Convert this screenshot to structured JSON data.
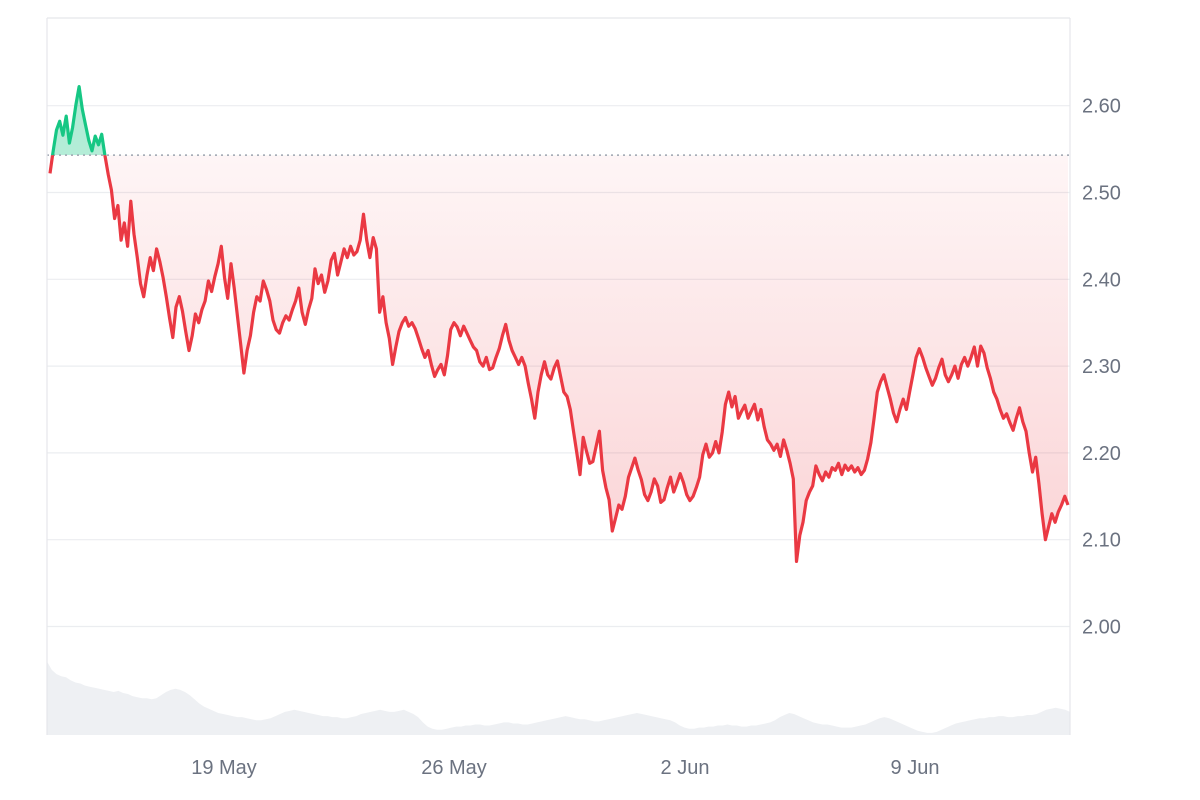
{
  "chart_data": {
    "type": "area",
    "title": "",
    "xlabel": "",
    "ylabel": "",
    "x_ticks": [
      "19 May",
      "26 May",
      "2 Jun",
      "9 Jun"
    ],
    "y_ticks": [
      "2.00",
      "2.10",
      "2.20",
      "2.30",
      "2.40",
      "2.50",
      "2.60"
    ],
    "ylim": [
      1.88,
      2.7
    ],
    "baseline": 2.543,
    "grid": true,
    "colors": {
      "up": "#16c784",
      "down": "#ea3943",
      "volume": "#eef0f3",
      "grid": "#ebedf0",
      "baseline": "#9ca3af"
    },
    "series": [
      {
        "values": [
          2.522,
          2.548,
          2.572,
          2.582,
          2.566,
          2.588,
          2.557,
          2.575,
          2.601,
          2.622,
          2.596,
          2.578,
          2.56,
          2.548,
          2.565,
          2.555,
          2.567,
          2.543,
          2.521,
          2.503,
          2.47,
          2.485,
          2.445,
          2.465,
          2.438,
          2.49,
          2.452,
          2.425,
          2.395,
          2.38,
          2.405,
          2.425,
          2.41,
          2.435,
          2.42,
          2.402,
          2.38,
          2.355,
          2.333,
          2.368,
          2.38,
          2.363,
          2.34,
          2.318,
          2.335,
          2.36,
          2.35,
          2.365,
          2.375,
          2.398,
          2.386,
          2.403,
          2.418,
          2.438,
          2.402,
          2.378,
          2.418,
          2.39,
          2.358,
          2.325,
          2.292,
          2.318,
          2.335,
          2.362,
          2.38,
          2.375,
          2.398,
          2.388,
          2.375,
          2.353,
          2.342,
          2.338,
          2.35,
          2.358,
          2.353,
          2.365,
          2.375,
          2.39,
          2.362,
          2.348,
          2.365,
          2.378,
          2.412,
          2.395,
          2.405,
          2.385,
          2.398,
          2.422,
          2.43,
          2.405,
          2.42,
          2.435,
          2.425,
          2.438,
          2.428,
          2.432,
          2.445,
          2.475,
          2.445,
          2.425,
          2.448,
          2.435,
          2.362,
          2.38,
          2.35,
          2.332,
          2.302,
          2.322,
          2.34,
          2.35,
          2.356,
          2.346,
          2.35,
          2.343,
          2.332,
          2.32,
          2.31,
          2.318,
          2.302,
          2.288,
          2.296,
          2.302,
          2.29,
          2.312,
          2.342,
          2.35,
          2.345,
          2.335,
          2.346,
          2.338,
          2.33,
          2.322,
          2.318,
          2.305,
          2.3,
          2.31,
          2.296,
          2.298,
          2.31,
          2.32,
          2.335,
          2.348,
          2.33,
          2.318,
          2.31,
          2.302,
          2.31,
          2.3,
          2.28,
          2.262,
          2.24,
          2.27,
          2.29,
          2.305,
          2.29,
          2.285,
          2.298,
          2.306,
          2.288,
          2.27,
          2.265,
          2.25,
          2.225,
          2.2,
          2.175,
          2.218,
          2.202,
          2.188,
          2.19,
          2.208,
          2.225,
          2.18,
          2.16,
          2.146,
          2.11,
          2.125,
          2.14,
          2.135,
          2.15,
          2.172,
          2.183,
          2.194,
          2.18,
          2.169,
          2.152,
          2.145,
          2.155,
          2.17,
          2.162,
          2.143,
          2.146,
          2.16,
          2.172,
          2.155,
          2.165,
          2.176,
          2.166,
          2.152,
          2.145,
          2.15,
          2.16,
          2.172,
          2.198,
          2.21,
          2.195,
          2.2,
          2.213,
          2.2,
          2.224,
          2.256,
          2.27,
          2.253,
          2.265,
          2.24,
          2.248,
          2.255,
          2.24,
          2.248,
          2.256,
          2.238,
          2.25,
          2.23,
          2.215,
          2.21,
          2.203,
          2.21,
          2.196,
          2.215,
          2.203,
          2.188,
          2.17,
          2.075,
          2.105,
          2.12,
          2.145,
          2.155,
          2.162,
          2.185,
          2.175,
          2.168,
          2.178,
          2.172,
          2.183,
          2.18,
          2.188,
          2.175,
          2.186,
          2.18,
          2.185,
          2.178,
          2.183,
          2.175,
          2.18,
          2.193,
          2.212,
          2.24,
          2.27,
          2.282,
          2.29,
          2.276,
          2.262,
          2.246,
          2.236,
          2.25,
          2.262,
          2.25,
          2.27,
          2.29,
          2.31,
          2.32,
          2.31,
          2.298,
          2.288,
          2.278,
          2.286,
          2.298,
          2.308,
          2.29,
          2.282,
          2.29,
          2.3,
          2.286,
          2.302,
          2.31,
          2.3,
          2.31,
          2.322,
          2.3,
          2.323,
          2.315,
          2.298,
          2.286,
          2.27,
          2.262,
          2.25,
          2.24,
          2.245,
          2.235,
          2.226,
          2.24,
          2.252,
          2.236,
          2.225,
          2.2,
          2.178,
          2.195,
          2.165,
          2.13,
          2.1,
          2.115,
          2.13,
          2.12,
          2.132,
          2.14,
          2.15,
          2.14
        ]
      }
    ],
    "volume_values": [
      0.7,
      0.62,
      0.58,
      0.56,
      0.55,
      0.52,
      0.5,
      0.49,
      0.47,
      0.46,
      0.45,
      0.44,
      0.43,
      0.42,
      0.41,
      0.42,
      0.4,
      0.39,
      0.37,
      0.36,
      0.35,
      0.35,
      0.34,
      0.35,
      0.38,
      0.41,
      0.43,
      0.44,
      0.43,
      0.41,
      0.38,
      0.34,
      0.3,
      0.27,
      0.25,
      0.23,
      0.21,
      0.2,
      0.19,
      0.18,
      0.17,
      0.17,
      0.16,
      0.15,
      0.14,
      0.14,
      0.15,
      0.16,
      0.18,
      0.2,
      0.22,
      0.23,
      0.24,
      0.23,
      0.22,
      0.21,
      0.2,
      0.19,
      0.18,
      0.18,
      0.17,
      0.17,
      0.16,
      0.16,
      0.17,
      0.18,
      0.2,
      0.21,
      0.22,
      0.23,
      0.24,
      0.23,
      0.22,
      0.22,
      0.23,
      0.24,
      0.22,
      0.2,
      0.17,
      0.12,
      0.08,
      0.06,
      0.05,
      0.05,
      0.06,
      0.07,
      0.08,
      0.08,
      0.09,
      0.09,
      0.1,
      0.1,
      0.09,
      0.09,
      0.1,
      0.11,
      0.12,
      0.12,
      0.11,
      0.11,
      0.1,
      0.1,
      0.11,
      0.12,
      0.13,
      0.14,
      0.15,
      0.16,
      0.17,
      0.18,
      0.17,
      0.16,
      0.15,
      0.15,
      0.14,
      0.13,
      0.13,
      0.14,
      0.15,
      0.16,
      0.17,
      0.18,
      0.19,
      0.2,
      0.21,
      0.2,
      0.19,
      0.18,
      0.17,
      0.16,
      0.15,
      0.14,
      0.12,
      0.09,
      0.07,
      0.06,
      0.06,
      0.07,
      0.07,
      0.08,
      0.08,
      0.09,
      0.09,
      0.1,
      0.09,
      0.09,
      0.08,
      0.08,
      0.09,
      0.09,
      0.1,
      0.11,
      0.12,
      0.14,
      0.17,
      0.19,
      0.21,
      0.2,
      0.18,
      0.16,
      0.14,
      0.12,
      0.11,
      0.1,
      0.1,
      0.09,
      0.08,
      0.07,
      0.07,
      0.07,
      0.08,
      0.09,
      0.1,
      0.12,
      0.14,
      0.16,
      0.17,
      0.16,
      0.14,
      0.12,
      0.1,
      0.08,
      0.06,
      0.04,
      0.03,
      0.02,
      0.02,
      0.03,
      0.05,
      0.07,
      0.09,
      0.11,
      0.12,
      0.13,
      0.14,
      0.15,
      0.16,
      0.16,
      0.17,
      0.17,
      0.18,
      0.18,
      0.17,
      0.17,
      0.18,
      0.18,
      0.19,
      0.19,
      0.2,
      0.22,
      0.24,
      0.25,
      0.26,
      0.25,
      0.24,
      0.22
    ]
  }
}
